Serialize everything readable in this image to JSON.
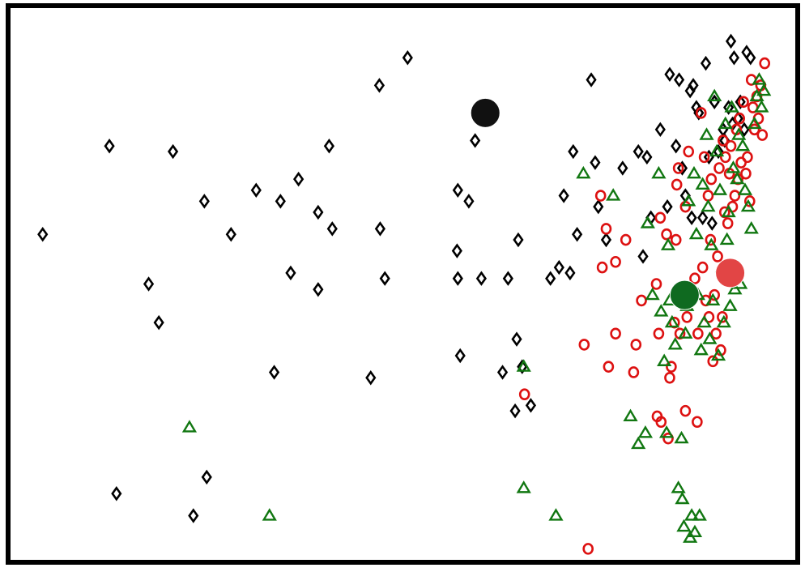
{
  "chart_data": {
    "type": "scatter",
    "title": "",
    "xlabel": "",
    "ylabel": "",
    "xlim": [
      0,
      1
    ],
    "ylim": [
      0,
      1
    ],
    "grid": false,
    "axes_ticks": false,
    "colors": {
      "frame": "#000000",
      "black_series": "#000000",
      "red_series": "#dd1111",
      "green_series": "#117711",
      "black_centroid": "#111111",
      "red_centroid": "#e24545",
      "green_centroid": "#0f6a20"
    },
    "series": [
      {
        "marker": "diamond",
        "color": "#000000",
        "points": [
          [
            0.041,
            0.59
          ],
          [
            0.126,
            0.75
          ],
          [
            0.207,
            0.74
          ],
          [
            0.247,
            0.65
          ],
          [
            0.281,
            0.59
          ],
          [
            0.176,
            0.5
          ],
          [
            0.189,
            0.43
          ],
          [
            0.313,
            0.67
          ],
          [
            0.344,
            0.65
          ],
          [
            0.367,
            0.69
          ],
          [
            0.406,
            0.75
          ],
          [
            0.392,
            0.63
          ],
          [
            0.41,
            0.6
          ],
          [
            0.357,
            0.52
          ],
          [
            0.392,
            0.49
          ],
          [
            0.336,
            0.34
          ],
          [
            0.459,
            0.33
          ],
          [
            0.47,
            0.86
          ],
          [
            0.506,
            0.91
          ],
          [
            0.471,
            0.6
          ],
          [
            0.477,
            0.51
          ],
          [
            0.57,
            0.67
          ],
          [
            0.584,
            0.65
          ],
          [
            0.592,
            0.76
          ],
          [
            0.569,
            0.56
          ],
          [
            0.57,
            0.51
          ],
          [
            0.6,
            0.51
          ],
          [
            0.634,
            0.51
          ],
          [
            0.647,
            0.58
          ],
          [
            0.645,
            0.4
          ],
          [
            0.573,
            0.37
          ],
          [
            0.627,
            0.34
          ],
          [
            0.652,
            0.35
          ],
          [
            0.643,
            0.27
          ],
          [
            0.663,
            0.28
          ],
          [
            0.25,
            0.15
          ],
          [
            0.135,
            0.12
          ],
          [
            0.233,
            0.08
          ],
          [
            0.688,
            0.51
          ],
          [
            0.699,
            0.53
          ],
          [
            0.713,
            0.52
          ],
          [
            0.705,
            0.66
          ],
          [
            0.722,
            0.59
          ],
          [
            0.717,
            0.74
          ],
          [
            0.745,
            0.72
          ],
          [
            0.74,
            0.87
          ],
          [
            0.749,
            0.64
          ],
          [
            0.759,
            0.58
          ],
          [
            0.78,
            0.71
          ],
          [
            0.8,
            0.74
          ],
          [
            0.806,
            0.55
          ],
          [
            0.811,
            0.73
          ],
          [
            0.816,
            0.62
          ],
          [
            0.828,
            0.78
          ],
          [
            0.837,
            0.64
          ],
          [
            0.84,
            0.88
          ],
          [
            0.848,
            0.75
          ],
          [
            0.852,
            0.87
          ],
          [
            0.856,
            0.71
          ],
          [
            0.86,
            0.66
          ],
          [
            0.866,
            0.85
          ],
          [
            0.868,
            0.62
          ],
          [
            0.87,
            0.86
          ],
          [
            0.874,
            0.82
          ],
          [
            0.877,
            0.81
          ],
          [
            0.882,
            0.62
          ],
          [
            0.886,
            0.9
          ],
          [
            0.89,
            0.73
          ],
          [
            0.894,
            0.61
          ],
          [
            0.897,
            0.83
          ],
          [
            0.902,
            0.74
          ],
          [
            0.908,
            0.78
          ],
          [
            0.91,
            0.76
          ],
          [
            0.915,
            0.82
          ],
          [
            0.918,
            0.94
          ],
          [
            0.92,
            0.79
          ],
          [
            0.922,
            0.91
          ],
          [
            0.927,
            0.8
          ],
          [
            0.93,
            0.83
          ],
          [
            0.935,
            0.78
          ],
          [
            0.938,
            0.92
          ],
          [
            0.943,
            0.91
          ]
        ]
      },
      {
        "marker": "circle",
        "color": "#dd1111",
        "points": [
          [
            0.752,
            0.66
          ],
          [
            0.759,
            0.6
          ],
          [
            0.754,
            0.53
          ],
          [
            0.771,
            0.54
          ],
          [
            0.784,
            0.58
          ],
          [
            0.731,
            0.39
          ],
          [
            0.762,
            0.35
          ],
          [
            0.771,
            0.41
          ],
          [
            0.794,
            0.34
          ],
          [
            0.797,
            0.39
          ],
          [
            0.804,
            0.47
          ],
          [
            0.823,
            0.5
          ],
          [
            0.826,
            0.41
          ],
          [
            0.828,
            0.62
          ],
          [
            0.829,
            0.25
          ],
          [
            0.836,
            0.59
          ],
          [
            0.84,
            0.33
          ],
          [
            0.842,
            0.35
          ],
          [
            0.846,
            0.43
          ],
          [
            0.848,
            0.58
          ],
          [
            0.849,
            0.68
          ],
          [
            0.851,
            0.71
          ],
          [
            0.853,
            0.41
          ],
          [
            0.86,
            0.64
          ],
          [
            0.86,
            0.27
          ],
          [
            0.862,
            0.44
          ],
          [
            0.864,
            0.74
          ],
          [
            0.867,
            0.49
          ],
          [
            0.872,
            0.51
          ],
          [
            0.875,
            0.25
          ],
          [
            0.876,
            0.41
          ],
          [
            0.88,
            0.81
          ],
          [
            0.882,
            0.53
          ],
          [
            0.884,
            0.73
          ],
          [
            0.886,
            0.47
          ],
          [
            0.889,
            0.66
          ],
          [
            0.89,
            0.44
          ],
          [
            0.892,
            0.58
          ],
          [
            0.893,
            0.69
          ],
          [
            0.895,
            0.36
          ],
          [
            0.897,
            0.48
          ],
          [
            0.899,
            0.41
          ],
          [
            0.901,
            0.55
          ],
          [
            0.903,
            0.71
          ],
          [
            0.905,
            0.38
          ],
          [
            0.907,
            0.44
          ],
          [
            0.908,
            0.76
          ],
          [
            0.91,
            0.63
          ],
          [
            0.911,
            0.73
          ],
          [
            0.914,
            0.61
          ],
          [
            0.916,
            0.7
          ],
          [
            0.918,
            0.75
          ],
          [
            0.92,
            0.64
          ],
          [
            0.923,
            0.66
          ],
          [
            0.925,
            0.78
          ],
          [
            0.927,
            0.69
          ],
          [
            0.929,
            0.8
          ],
          [
            0.931,
            0.72
          ],
          [
            0.934,
            0.83
          ],
          [
            0.937,
            0.7
          ],
          [
            0.939,
            0.73
          ],
          [
            0.942,
            0.65
          ],
          [
            0.944,
            0.87
          ],
          [
            0.946,
            0.82
          ],
          [
            0.948,
            0.78
          ],
          [
            0.951,
            0.84
          ],
          [
            0.953,
            0.8
          ],
          [
            0.956,
            0.86
          ],
          [
            0.958,
            0.77
          ],
          [
            0.961,
            0.9
          ],
          [
            0.655,
            0.3
          ],
          [
            0.736,
            0.02
          ],
          [
            0.838,
            0.22
          ],
          [
            0.824,
            0.26
          ]
        ]
      },
      {
        "marker": "triangle",
        "color": "#117711",
        "points": [
          [
            0.228,
            0.24
          ],
          [
            0.33,
            0.08
          ],
          [
            0.654,
            0.13
          ],
          [
            0.654,
            0.35
          ],
          [
            0.695,
            0.08
          ],
          [
            0.73,
            0.7
          ],
          [
            0.768,
            0.66
          ],
          [
            0.79,
            0.26
          ],
          [
            0.8,
            0.21
          ],
          [
            0.809,
            0.23
          ],
          [
            0.812,
            0.61
          ],
          [
            0.818,
            0.48
          ],
          [
            0.826,
            0.7
          ],
          [
            0.829,
            0.45
          ],
          [
            0.833,
            0.36
          ],
          [
            0.836,
            0.23
          ],
          [
            0.838,
            0.57
          ],
          [
            0.84,
            0.47
          ],
          [
            0.843,
            0.43
          ],
          [
            0.847,
            0.39
          ],
          [
            0.851,
            0.13
          ],
          [
            0.855,
            0.22
          ],
          [
            0.856,
            0.11
          ],
          [
            0.858,
            0.06
          ],
          [
            0.86,
            0.41
          ],
          [
            0.862,
            0.46
          ],
          [
            0.864,
            0.65
          ],
          [
            0.866,
            0.04
          ],
          [
            0.868,
            0.08
          ],
          [
            0.871,
            0.7
          ],
          [
            0.872,
            0.05
          ],
          [
            0.874,
            0.59
          ],
          [
            0.876,
            0.48
          ],
          [
            0.878,
            0.08
          ],
          [
            0.88,
            0.38
          ],
          [
            0.882,
            0.68
          ],
          [
            0.884,
            0.43
          ],
          [
            0.887,
            0.77
          ],
          [
            0.889,
            0.64
          ],
          [
            0.891,
            0.4
          ],
          [
            0.893,
            0.57
          ],
          [
            0.895,
            0.47
          ],
          [
            0.897,
            0.84
          ],
          [
            0.9,
            0.74
          ],
          [
            0.902,
            0.37
          ],
          [
            0.904,
            0.67
          ],
          [
            0.907,
            0.53
          ],
          [
            0.909,
            0.43
          ],
          [
            0.911,
            0.79
          ],
          [
            0.913,
            0.58
          ],
          [
            0.915,
            0.63
          ],
          [
            0.917,
            0.46
          ],
          [
            0.919,
            0.82
          ],
          [
            0.921,
            0.71
          ],
          [
            0.923,
            0.49
          ],
          [
            0.926,
            0.69
          ],
          [
            0.928,
            0.77
          ],
          [
            0.93,
            0.5
          ],
          [
            0.933,
            0.75
          ],
          [
            0.936,
            0.67
          ],
          [
            0.94,
            0.64
          ],
          [
            0.944,
            0.6
          ],
          [
            0.948,
            0.79
          ],
          [
            0.951,
            0.84
          ],
          [
            0.954,
            0.87
          ],
          [
            0.957,
            0.82
          ],
          [
            0.96,
            0.85
          ]
        ]
      },
      {
        "marker": "filled-circle",
        "color": "#111111",
        "points": [
          [
            0.605,
            0.81
          ]
        ]
      },
      {
        "marker": "filled-circle",
        "color": "#e24545",
        "points": [
          [
            0.917,
            0.52
          ]
        ]
      },
      {
        "marker": "filled-circle",
        "color": "#0f6a20",
        "points": [
          [
            0.859,
            0.48
          ]
        ]
      }
    ]
  }
}
